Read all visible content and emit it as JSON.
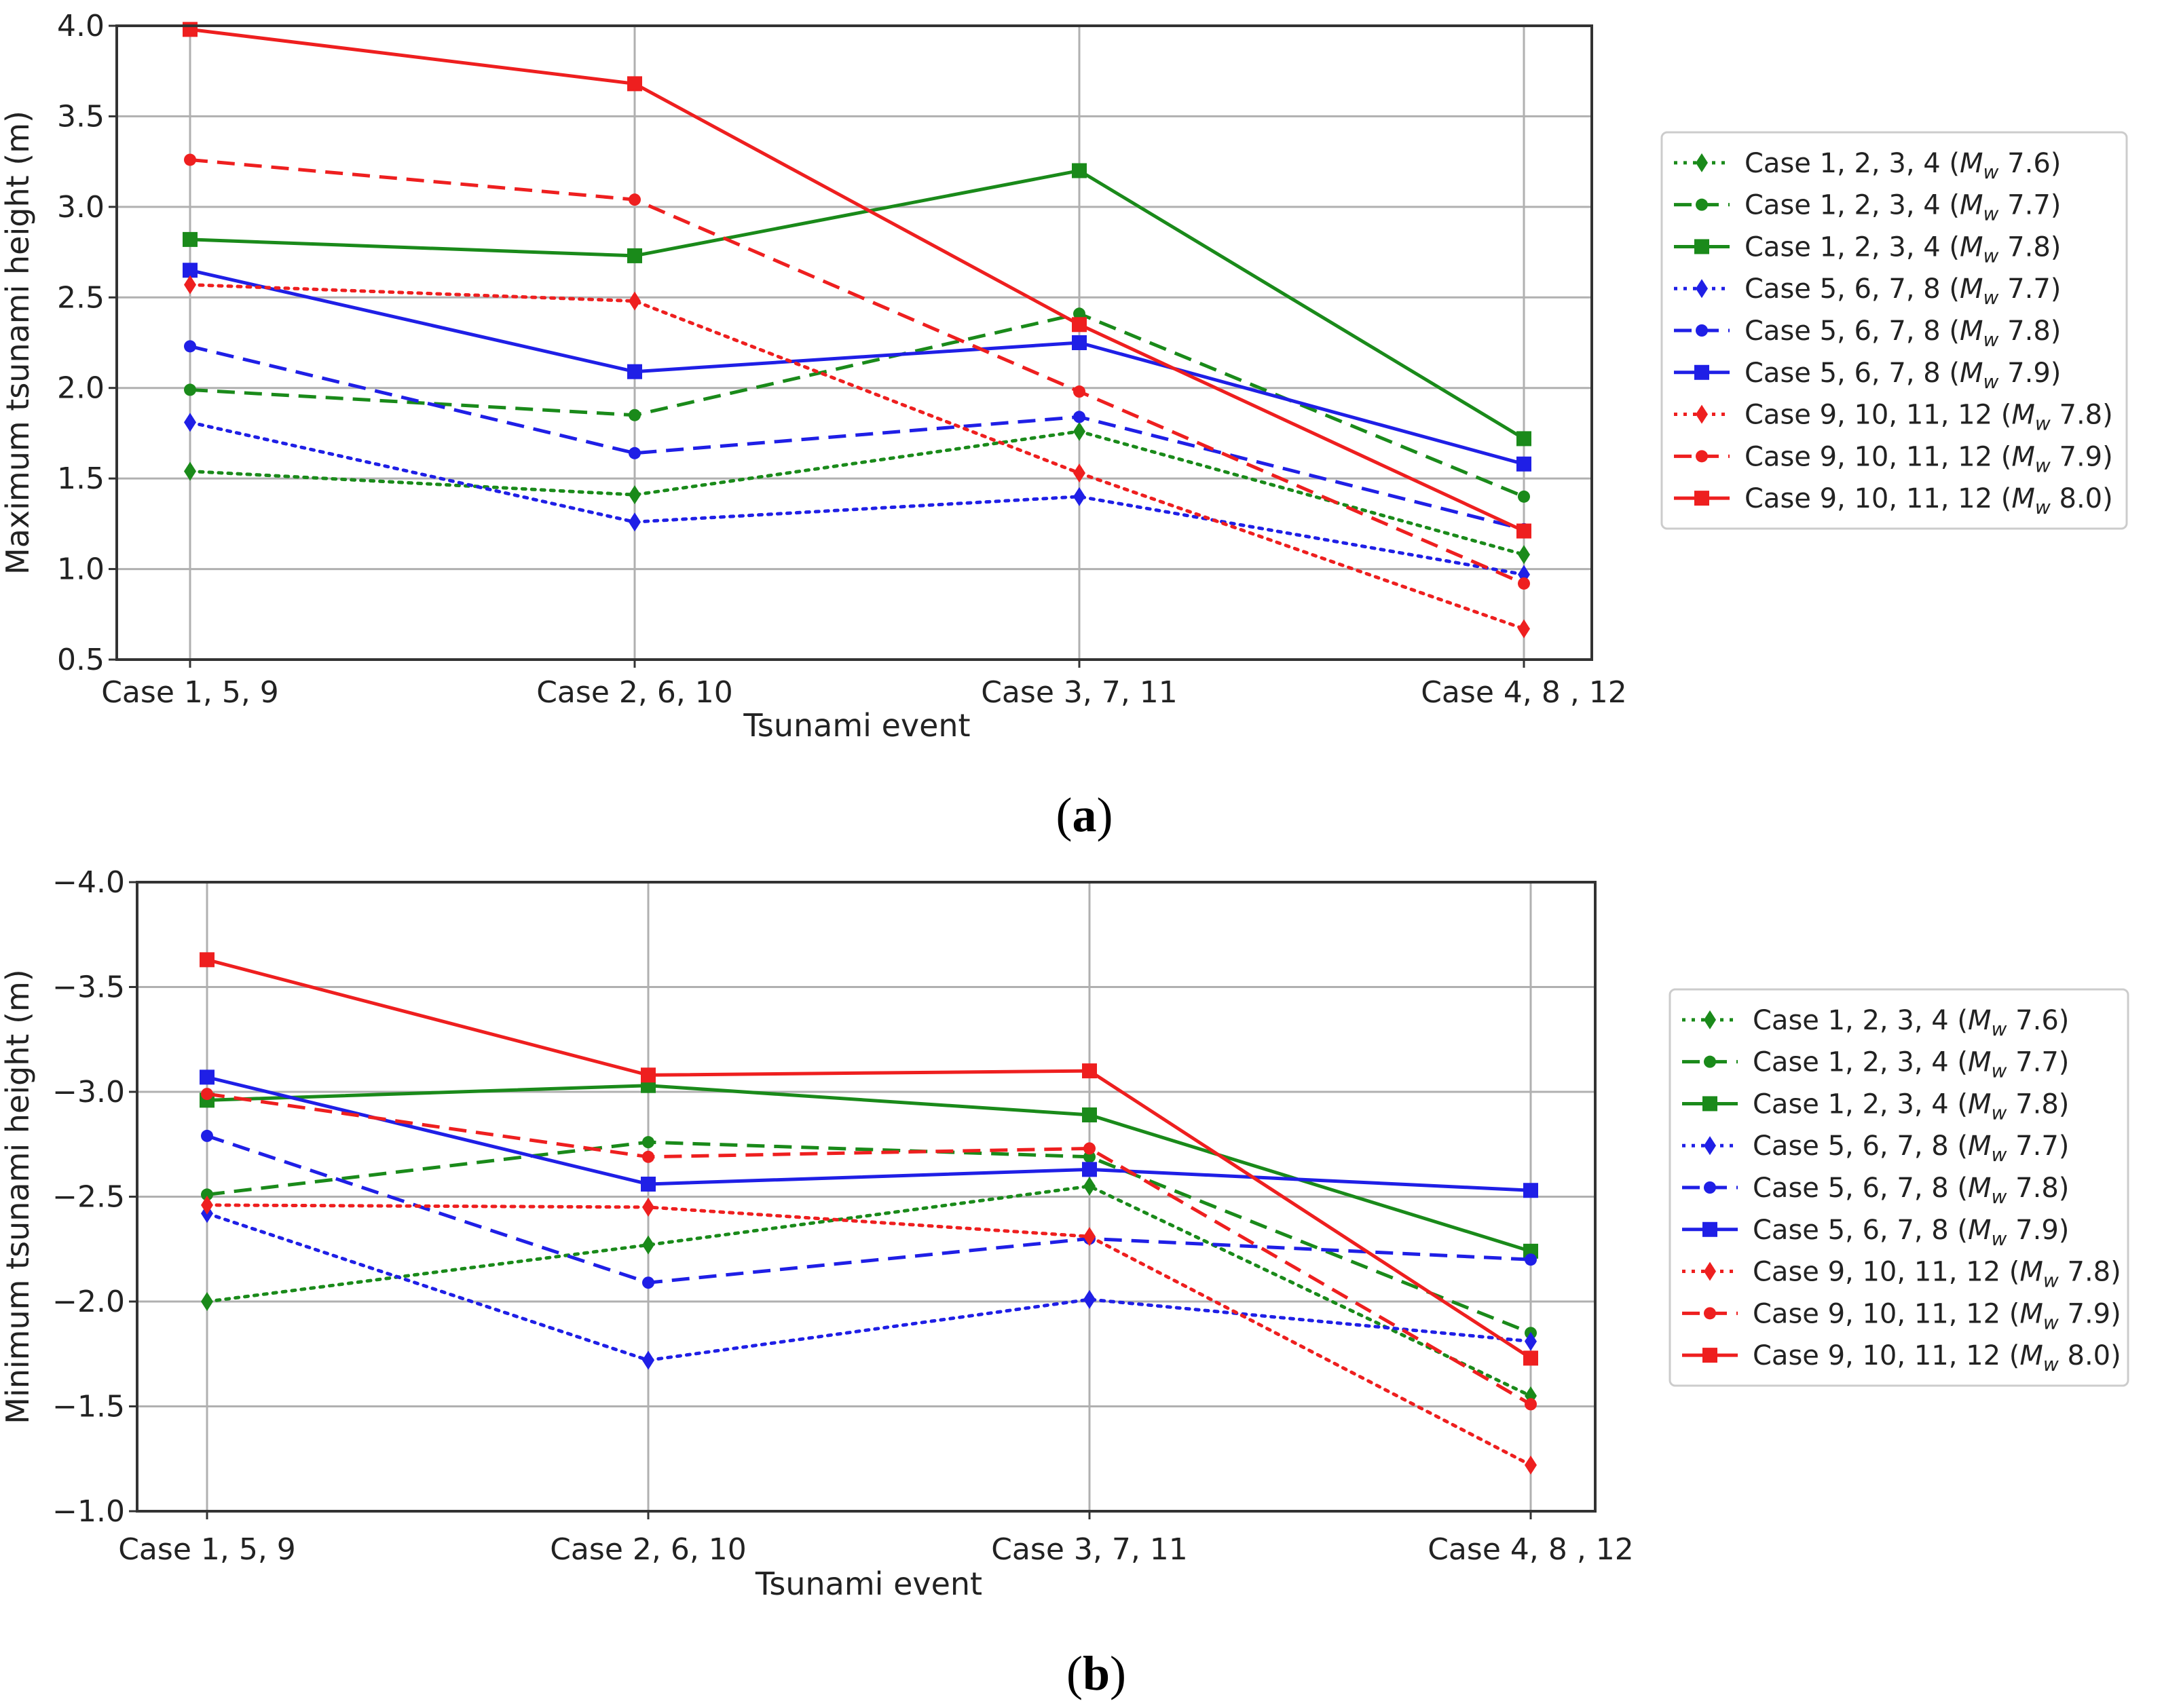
{
  "chart_data": [
    {
      "type": "line",
      "caption_letter": "a",
      "title": "",
      "xlabel": "Tsunami event",
      "ylabel": "Maximum tsunami height (m)",
      "categories": [
        "Case 1, 5, 9",
        "Case 2, 6, 10",
        "Case 3, 7, 11",
        "Case 4, 8 , 12"
      ],
      "ylim": [
        0.5,
        4.0
      ],
      "inverted_y": false,
      "yticks": [
        0.5,
        1.0,
        1.5,
        2.0,
        2.5,
        3.0,
        3.5,
        4.0
      ],
      "ytick_labels": [
        "0.5",
        "1.0",
        "1.5",
        "2.0",
        "2.5",
        "3.0",
        "3.5",
        "4.0"
      ],
      "grid": true,
      "legend_position": "right",
      "series": [
        {
          "name": "Case 1, 2, 3, 4",
          "mw": "7.6",
          "color": "#1a8a1a",
          "style": "dotted",
          "marker": "diamond",
          "values": [
            1.54,
            1.41,
            1.76,
            1.08
          ]
        },
        {
          "name": "Case 1, 2, 3, 4",
          "mw": "7.7",
          "color": "#1a8a1a",
          "style": "dashed",
          "marker": "circle",
          "values": [
            1.99,
            1.85,
            2.41,
            1.4
          ]
        },
        {
          "name": "Case 1, 2, 3, 4",
          "mw": "7.8",
          "color": "#1a8a1a",
          "style": "solid",
          "marker": "square",
          "values": [
            2.82,
            2.73,
            3.2,
            1.72
          ]
        },
        {
          "name": "Case 5, 6, 7, 8",
          "mw": "7.7",
          "color": "#1f1fe6",
          "style": "dotted",
          "marker": "diamond",
          "values": [
            1.81,
            1.26,
            1.4,
            0.97
          ]
        },
        {
          "name": "Case 5, 6, 7, 8",
          "mw": "7.8",
          "color": "#1f1fe6",
          "style": "dashed",
          "marker": "circle",
          "values": [
            2.23,
            1.64,
            1.84,
            1.22
          ]
        },
        {
          "name": "Case 5, 6, 7, 8",
          "mw": "7.9",
          "color": "#1f1fe6",
          "style": "solid",
          "marker": "square",
          "values": [
            2.65,
            2.09,
            2.25,
            1.58
          ]
        },
        {
          "name": "Case 9, 10, 11, 12",
          "mw": "7.8",
          "color": "#ee1f1f",
          "style": "dotted",
          "marker": "diamond",
          "values": [
            2.57,
            2.48,
            1.53,
            0.67
          ]
        },
        {
          "name": "Case 9, 10, 11, 12",
          "mw": "7.9",
          "color": "#ee1f1f",
          "style": "dashed",
          "marker": "circle",
          "values": [
            3.26,
            3.04,
            1.98,
            0.92
          ]
        },
        {
          "name": "Case 9, 10, 11, 12",
          "mw": "8.0",
          "color": "#ee1f1f",
          "style": "solid",
          "marker": "square",
          "values": [
            3.98,
            3.68,
            2.35,
            1.21
          ]
        }
      ]
    },
    {
      "type": "line",
      "caption_letter": "b",
      "title": "",
      "xlabel": "Tsunami event",
      "ylabel": "Minimum tsunami height (m)",
      "categories": [
        "Case 1, 5, 9",
        "Case 2, 6, 10",
        "Case 3, 7, 11",
        "Case 4, 8 , 12"
      ],
      "ylim": [
        -1.0,
        -4.0
      ],
      "inverted_y": true,
      "yticks": [
        -1.0,
        -1.5,
        -2.0,
        -2.5,
        -3.0,
        -3.5,
        -4.0
      ],
      "ytick_labels": [
        "−1.0",
        "−1.5",
        "−2.0",
        "−2.5",
        "−3.0",
        "−3.5",
        "−4.0"
      ],
      "grid": true,
      "legend_position": "right",
      "series": [
        {
          "name": "Case 1, 2, 3, 4",
          "mw": "7.6",
          "color": "#1a8a1a",
          "style": "dotted",
          "marker": "diamond",
          "values": [
            -2.0,
            -2.27,
            -2.55,
            -1.55
          ]
        },
        {
          "name": "Case 1, 2, 3, 4",
          "mw": "7.7",
          "color": "#1a8a1a",
          "style": "dashed",
          "marker": "circle",
          "values": [
            -2.51,
            -2.76,
            -2.69,
            -1.85
          ]
        },
        {
          "name": "Case 1, 2, 3, 4",
          "mw": "7.8",
          "color": "#1a8a1a",
          "style": "solid",
          "marker": "square",
          "values": [
            -2.96,
            -3.03,
            -2.89,
            -2.24
          ]
        },
        {
          "name": "Case 5, 6, 7, 8",
          "mw": "7.7",
          "color": "#1f1fe6",
          "style": "dotted",
          "marker": "diamond",
          "values": [
            -2.42,
            -1.72,
            -2.01,
            -1.81
          ]
        },
        {
          "name": "Case 5, 6, 7, 8",
          "mw": "7.8",
          "color": "#1f1fe6",
          "style": "dashed",
          "marker": "circle",
          "values": [
            -2.79,
            -2.09,
            -2.3,
            -2.2
          ]
        },
        {
          "name": "Case 5, 6, 7, 8",
          "mw": "7.9",
          "color": "#1f1fe6",
          "style": "solid",
          "marker": "square",
          "values": [
            -3.07,
            -2.56,
            -2.63,
            -2.53
          ]
        },
        {
          "name": "Case 9, 10, 11, 12",
          "mw": "7.8",
          "color": "#ee1f1f",
          "style": "dotted",
          "marker": "diamond",
          "values": [
            -2.46,
            -2.45,
            -2.31,
            -1.22
          ]
        },
        {
          "name": "Case 9, 10, 11, 12",
          "mw": "7.9",
          "color": "#ee1f1f",
          "style": "dashed",
          "marker": "circle",
          "values": [
            -2.99,
            -2.69,
            -2.73,
            -1.51
          ]
        },
        {
          "name": "Case 9, 10, 11, 12",
          "mw": "8.0",
          "color": "#ee1f1f",
          "style": "solid",
          "marker": "square",
          "values": [
            -3.63,
            -3.08,
            -3.1,
            -1.73
          ]
        }
      ]
    }
  ]
}
